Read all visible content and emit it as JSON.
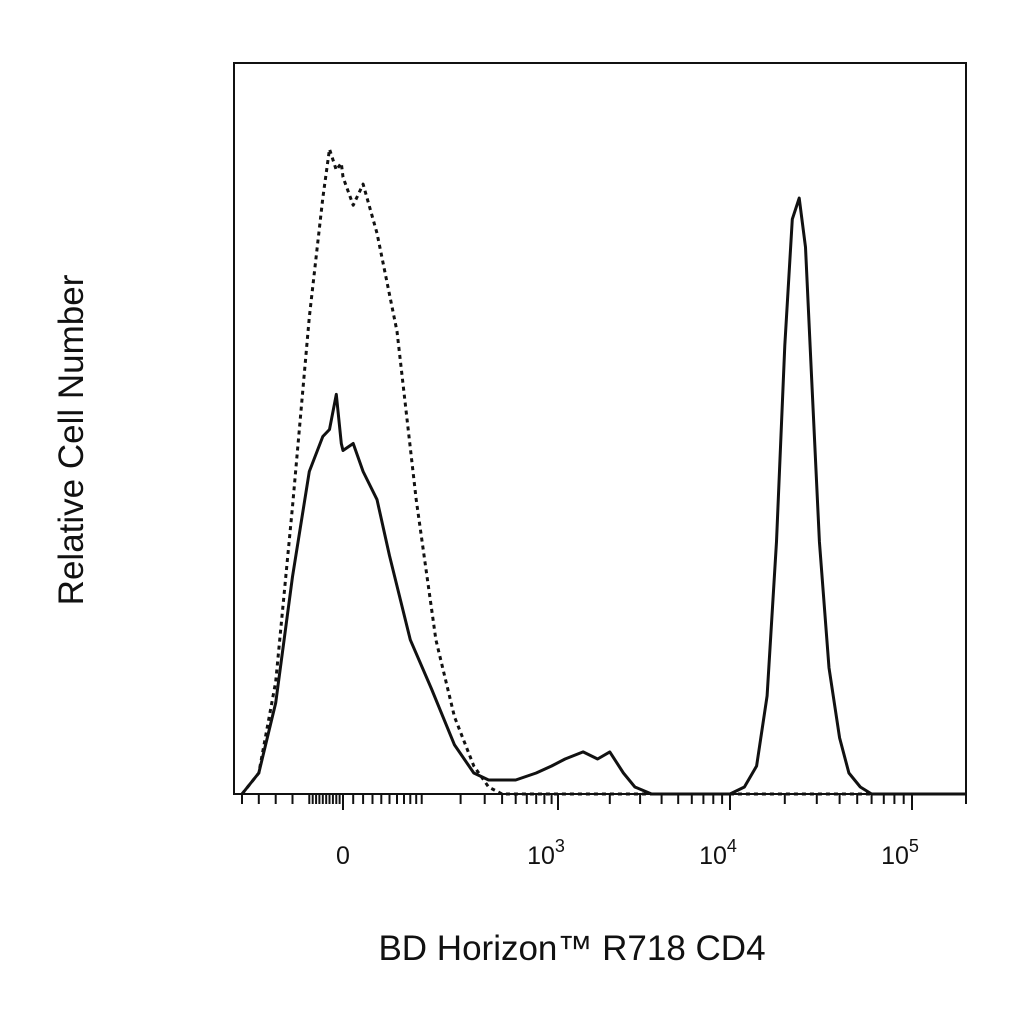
{
  "chart_data": {
    "type": "line",
    "title": "",
    "xlabel": "BD Horizon™ R718 CD4",
    "ylabel": "Relative Cell Number",
    "x_scale": "biexponential",
    "xlim": [
      -300,
      200000
    ],
    "ylim": [
      0,
      100
    ],
    "grid": false,
    "legend": "none",
    "x_ticks": [
      {
        "value": 0,
        "base": "0",
        "exp": ""
      },
      {
        "value": 1000,
        "base": "10",
        "exp": "3"
      },
      {
        "value": 10000,
        "base": "10",
        "exp": "4"
      },
      {
        "value": 100000,
        "base": "10",
        "exp": "5"
      }
    ],
    "series": [
      {
        "style": "dotted",
        "color": "#111111",
        "x": [
          -300,
          -250,
          -200,
          -150,
          -100,
          -60,
          -40,
          -20,
          -5,
          0,
          10,
          20,
          35,
          60,
          90,
          130,
          180,
          250,
          320,
          400,
          460,
          500,
          1000,
          10000,
          100000,
          200000
        ],
        "y": [
          0,
          3,
          16,
          41,
          68,
          85,
          92,
          89,
          90,
          88,
          84,
          87,
          80,
          66,
          42,
          22,
          11,
          4,
          1,
          0,
          0,
          0,
          0,
          0,
          0,
          0
        ]
      },
      {
        "style": "solid",
        "color": "#111111",
        "x": [
          -300,
          -250,
          -200,
          -150,
          -100,
          -60,
          -40,
          -20,
          -5,
          0,
          10,
          20,
          35,
          50,
          80,
          120,
          180,
          250,
          320,
          420,
          500,
          700,
          900,
          1100,
          1400,
          1700,
          2000,
          2400,
          2800,
          3500,
          4500,
          6000,
          8000,
          10000,
          12000,
          14000,
          16000,
          18000,
          20000,
          22000,
          24000,
          26000,
          28000,
          31000,
          35000,
          40000,
          45000,
          52000,
          60000,
          80000,
          100000,
          200000
        ],
        "y": [
          0,
          3,
          13,
          31,
          46,
          51,
          52,
          57,
          50,
          49,
          50,
          46,
          42,
          34,
          22,
          15,
          7,
          3,
          2,
          2,
          2,
          3,
          4,
          5,
          6,
          5,
          6,
          3,
          1,
          0,
          0,
          0,
          0,
          0,
          1,
          4,
          14,
          36,
          64,
          82,
          85,
          78,
          60,
          36,
          18,
          8,
          3,
          1,
          0,
          0,
          0,
          0
        ]
      }
    ]
  }
}
